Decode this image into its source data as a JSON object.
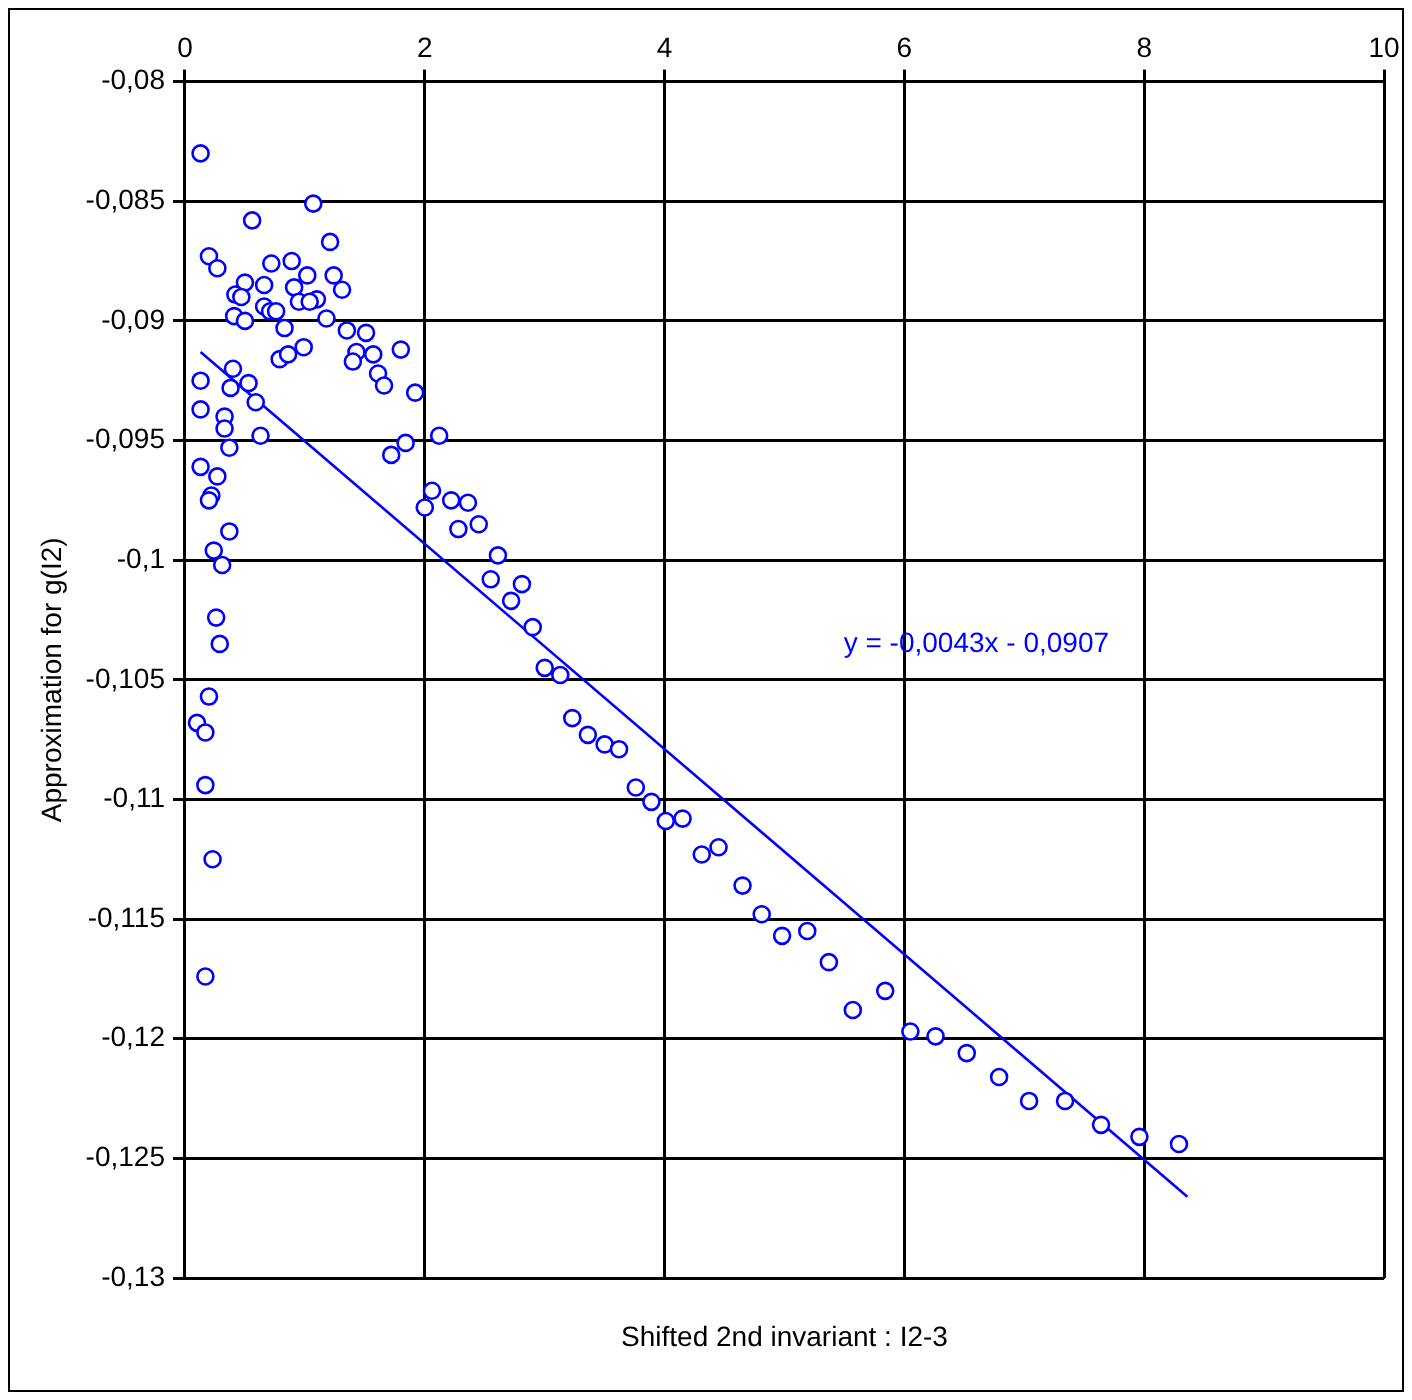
{
  "chart_data": {
    "type": "scatter",
    "xlabel": "Shifted 2nd invariant : I2-3",
    "ylabel": "Approximation for g(I2)",
    "xlim": [
      0,
      10
    ],
    "xticks": [
      0,
      2,
      4,
      6,
      8,
      10
    ],
    "ylim": [
      -0.13,
      -0.08
    ],
    "yticks": [
      {
        "value": -0.13,
        "label": "-0,13"
      },
      {
        "value": -0.125,
        "label": "-0,125"
      },
      {
        "value": -0.12,
        "label": "-0,12"
      },
      {
        "value": -0.115,
        "label": "-0,115"
      },
      {
        "value": -0.11,
        "label": "-0,11"
      },
      {
        "value": -0.105,
        "label": "-0,105"
      },
      {
        "value": -0.1,
        "label": "-0,1"
      },
      {
        "value": -0.095,
        "label": "-0,095"
      },
      {
        "value": -0.09,
        "label": "-0,09"
      },
      {
        "value": -0.085,
        "label": "-0,085"
      },
      {
        "value": -0.08,
        "label": "-0,08"
      }
    ],
    "grid": true,
    "legend": false,
    "marker": "circle",
    "annotations": [
      "y = -0,0043x - 0,0907"
    ],
    "series": [
      {
        "type": "scatter",
        "color": "#0000ff",
        "x": [
          0.13,
          1.07,
          0.56,
          1.21,
          0.2,
          0.27,
          0.72,
          0.89,
          1.02,
          1.24,
          1.31,
          0.5,
          0.66,
          0.91,
          0.42,
          0.47,
          0.95,
          0.66,
          1.1,
          1.04,
          0.71,
          0.76,
          1.18,
          0.41,
          0.5,
          0.83,
          1.35,
          1.51,
          0.99,
          0.79,
          0.86,
          1.43,
          1.4,
          1.57,
          1.8,
          1.61,
          1.66,
          1.92,
          0.4,
          0.13,
          0.38,
          0.53,
          0.59,
          0.13,
          0.33,
          0.33,
          0.63,
          0.37,
          2.12,
          1.72,
          1.84,
          0.13,
          0.27,
          0.22,
          0.2,
          2.06,
          2.0,
          2.22,
          2.36,
          2.28,
          2.45,
          0.37,
          0.24,
          0.31,
          2.61,
          2.55,
          0.26,
          0.29,
          0.2,
          0.1,
          0.17,
          0.17,
          0.23,
          0.17,
          2.81,
          2.72,
          2.9,
          3.0,
          3.13,
          3.23,
          3.36,
          3.5,
          3.62,
          3.76,
          3.89,
          4.01,
          4.15,
          4.31,
          4.45,
          4.65,
          4.81,
          4.98,
          5.19,
          5.37,
          5.57,
          5.84,
          6.05,
          6.26,
          6.52,
          6.79,
          7.04,
          7.34,
          7.64,
          7.96,
          8.29
        ],
        "values": [
          -0.083,
          -0.0851,
          -0.0858,
          -0.0867,
          -0.0873,
          -0.0878,
          -0.0876,
          -0.0875,
          -0.0881,
          -0.0881,
          -0.0887,
          -0.0884,
          -0.0885,
          -0.0886,
          -0.0889,
          -0.089,
          -0.0892,
          -0.0894,
          -0.0891,
          -0.0892,
          -0.0896,
          -0.0896,
          -0.0899,
          -0.0898,
          -0.09,
          -0.0903,
          -0.0904,
          -0.0905,
          -0.0911,
          -0.0916,
          -0.0914,
          -0.0913,
          -0.0917,
          -0.0914,
          -0.0912,
          -0.0922,
          -0.0927,
          -0.093,
          -0.092,
          -0.0925,
          -0.0928,
          -0.0926,
          -0.0934,
          -0.0937,
          -0.094,
          -0.0945,
          -0.0948,
          -0.0953,
          -0.0948,
          -0.0956,
          -0.0951,
          -0.0961,
          -0.0965,
          -0.0973,
          -0.0975,
          -0.0971,
          -0.0978,
          -0.0975,
          -0.0976,
          -0.0987,
          -0.0985,
          -0.0988,
          -0.0996,
          -0.1002,
          -0.0998,
          -0.1008,
          -0.1024,
          -0.1035,
          -0.1057,
          -0.1068,
          -0.1072,
          -0.1094,
          -0.1125,
          -0.1174,
          -0.101,
          -0.1017,
          -0.1028,
          -0.1045,
          -0.1048,
          -0.1066,
          -0.1073,
          -0.1077,
          -0.1079,
          -0.1095,
          -0.1101,
          -0.1109,
          -0.1108,
          -0.1123,
          -0.112,
          -0.1136,
          -0.1148,
          -0.1157,
          -0.1155,
          -0.1168,
          -0.1188,
          -0.118,
          -0.1197,
          -0.1199,
          -0.1206,
          -0.1216,
          -0.1226,
          -0.1226,
          -0.1236,
          -0.1241,
          -0.1244
        ]
      },
      {
        "type": "line",
        "color": "#0000ff",
        "marker": "none",
        "x": [
          0.13,
          8.36
        ],
        "values": [
          -0.0913,
          -0.1266
        ]
      }
    ]
  }
}
